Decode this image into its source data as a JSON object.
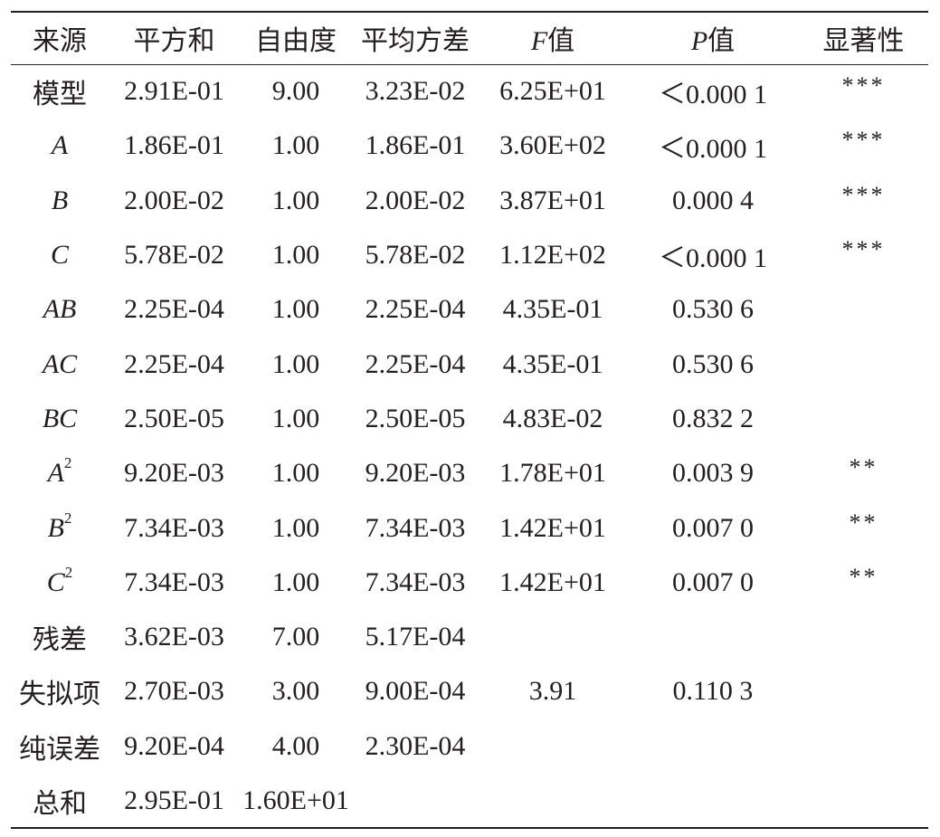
{
  "header": {
    "source": "来源",
    "ss": "平方和",
    "df": "自由度",
    "ms": "平均方差",
    "f_sym": "F",
    "f_suffix": "值",
    "p_sym": "P",
    "p_suffix": "值",
    "sig": "显著性"
  },
  "rows": [
    {
      "src": "模型",
      "sup": "",
      "ss": "2.91E-01",
      "df": "9.00",
      "ms": "3.23E-02",
      "f": "6.25E+01",
      "p": "＜0.000 1",
      "sig": "***"
    },
    {
      "src": "A",
      "sup": "",
      "ss": "1.86E-01",
      "df": "1.00",
      "ms": "1.86E-01",
      "f": "3.60E+02",
      "p": "＜0.000 1",
      "sig": "***"
    },
    {
      "src": "B",
      "sup": "",
      "ss": "2.00E-02",
      "df": "1.00",
      "ms": "2.00E-02",
      "f": "3.87E+01",
      "p": "0.000 4",
      "sig": "***"
    },
    {
      "src": "C",
      "sup": "",
      "ss": "5.78E-02",
      "df": "1.00",
      "ms": "5.78E-02",
      "f": "1.12E+02",
      "p": "＜0.000 1",
      "sig": "***"
    },
    {
      "src": "AB",
      "sup": "",
      "ss": "2.25E-04",
      "df": "1.00",
      "ms": "2.25E-04",
      "f": "4.35E-01",
      "p": "0.530 6",
      "sig": ""
    },
    {
      "src": "AC",
      "sup": "",
      "ss": "2.25E-04",
      "df": "1.00",
      "ms": "2.25E-04",
      "f": "4.35E-01",
      "p": "0.530 6",
      "sig": ""
    },
    {
      "src": "BC",
      "sup": "",
      "ss": "2.50E-05",
      "df": "1.00",
      "ms": "2.50E-05",
      "f": "4.83E-02",
      "p": "0.832 2",
      "sig": ""
    },
    {
      "src": "A",
      "sup": "2",
      "ss": "9.20E-03",
      "df": "1.00",
      "ms": "9.20E-03",
      "f": "1.78E+01",
      "p": "0.003 9",
      "sig": "**"
    },
    {
      "src": "B",
      "sup": "2",
      "ss": "7.34E-03",
      "df": "1.00",
      "ms": "7.34E-03",
      "f": "1.42E+01",
      "p": "0.007 0",
      "sig": "**"
    },
    {
      "src": "C",
      "sup": "2",
      "ss": "7.34E-03",
      "df": "1.00",
      "ms": "7.34E-03",
      "f": "1.42E+01",
      "p": "0.007 0",
      "sig": "**"
    },
    {
      "src": "残差",
      "sup": "",
      "ss": "3.62E-03",
      "df": "7.00",
      "ms": "5.17E-04",
      "f": "",
      "p": "",
      "sig": ""
    },
    {
      "src": "失拟项",
      "sup": "",
      "ss": "2.70E-03",
      "df": "3.00",
      "ms": "9.00E-04",
      "f": "3.91",
      "p": "0.110 3",
      "sig": ""
    },
    {
      "src": "纯误差",
      "sup": "",
      "ss": "9.20E-04",
      "df": "4.00",
      "ms": "2.30E-04",
      "f": "",
      "p": "",
      "sig": ""
    },
    {
      "src": "总和",
      "sup": "",
      "ss": "2.95E-01",
      "df": "1.60E+01",
      "ms": "",
      "f": "",
      "p": "",
      "sig": ""
    }
  ]
}
